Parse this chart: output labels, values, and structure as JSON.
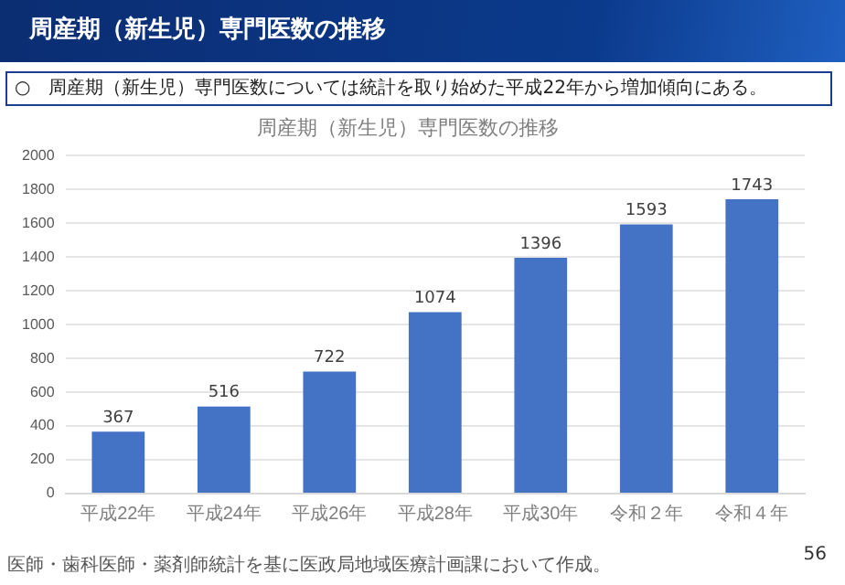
{
  "chart_data": {
    "type": "bar",
    "title": "周産期（新生児）専門医数の推移",
    "subtitle": "○　周産期（新生児）専門医数については統計を取り始めた平成22年から増加傾向にある。",
    "categories": [
      "平成22年",
      "平成24年",
      "平成26年",
      "平成28年",
      "平成30年",
      "令和２年",
      "令和４年"
    ],
    "values": [
      367,
      516,
      722,
      1074,
      1396,
      1593,
      1743
    ],
    "color": "#4472c4",
    "ylim": [
      0,
      2000
    ],
    "yticks": [
      0,
      200,
      400,
      600,
      800,
      1000,
      1200,
      1400,
      1600,
      1800,
      2000
    ],
    "grid": "y",
    "legend": false,
    "data_labels": true,
    "annotations": [
      "周産期（新生児）専門医数の推移",
      "医師・歯科医師・薬剤師統計を基に医政局地域医療計画課において作成。",
      "56"
    ]
  }
}
